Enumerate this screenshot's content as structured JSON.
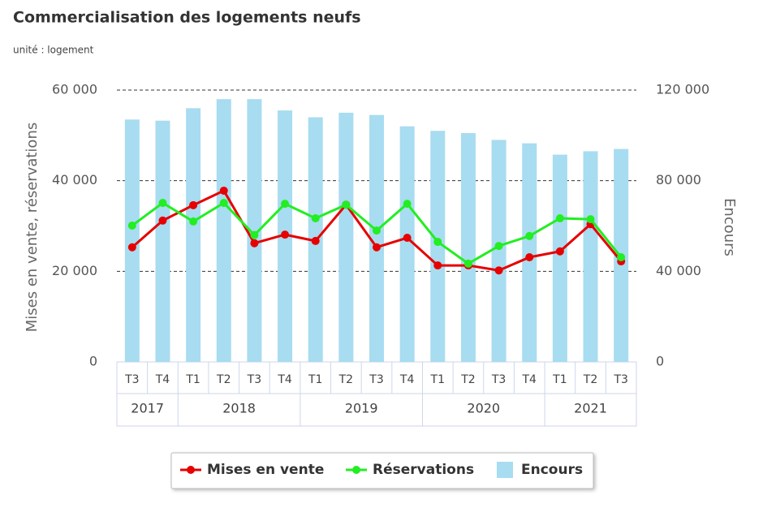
{
  "chart_data": {
    "type": "bar_line",
    "title": "Commercialisation des logements neufs",
    "subtitle": "unité : logement",
    "y_axis_title": "Mises en vente, réservations",
    "y2_axis_title": "Encours",
    "groups": [
      {
        "label": "2017",
        "categories": [
          "T3",
          "T4"
        ]
      },
      {
        "label": "2018",
        "categories": [
          "T1",
          "T2",
          "T3",
          "T4"
        ]
      },
      {
        "label": "2019",
        "categories": [
          "T1",
          "T2",
          "T3",
          "T4"
        ]
      },
      {
        "label": "2020",
        "categories": [
          "T1",
          "T2",
          "T3",
          "T4"
        ]
      },
      {
        "label": "2021",
        "categories": [
          "T1",
          "T2",
          "T3"
        ]
      }
    ],
    "ylim": [
      0,
      60000
    ],
    "yticks": [
      0,
      {
        "value": 20000,
        "label": "20 000"
      },
      {
        "value": 40000,
        "label": "40 000"
      },
      {
        "value": 60000,
        "label": "60 000"
      }
    ],
    "y2lim": [
      0,
      120000
    ],
    "y2ticks": [
      0,
      {
        "value": 40000,
        "label": "40 000"
      },
      {
        "value": 80000,
        "label": "80 000"
      },
      {
        "value": 120000,
        "label": "120 000"
      }
    ],
    "grid": true,
    "legend": "bottom",
    "series": [
      {
        "name": "Mises en vente",
        "type": "line",
        "color": "#e60000",
        "values": [
          25300,
          31200,
          34600,
          37800,
          26200,
          28100,
          26700,
          34700,
          25300,
          27400,
          21300,
          21300,
          20200,
          23100,
          24400,
          30400,
          22200
        ]
      },
      {
        "name": "Réservations",
        "type": "line",
        "color": "#22ee22",
        "values": [
          30100,
          35100,
          31000,
          35100,
          28000,
          34900,
          31700,
          34700,
          29000,
          34900,
          26500,
          21700,
          25600,
          27800,
          31700,
          31500,
          23100
        ]
      },
      {
        "name": "Encours",
        "type": "bar",
        "axis": "y2",
        "color": "#a8dcf0",
        "values": [
          107000,
          106500,
          112000,
          116000,
          116000,
          111000,
          108000,
          110000,
          109000,
          104000,
          102000,
          101000,
          98000,
          96500,
          91500,
          93000,
          94000
        ]
      }
    ]
  }
}
